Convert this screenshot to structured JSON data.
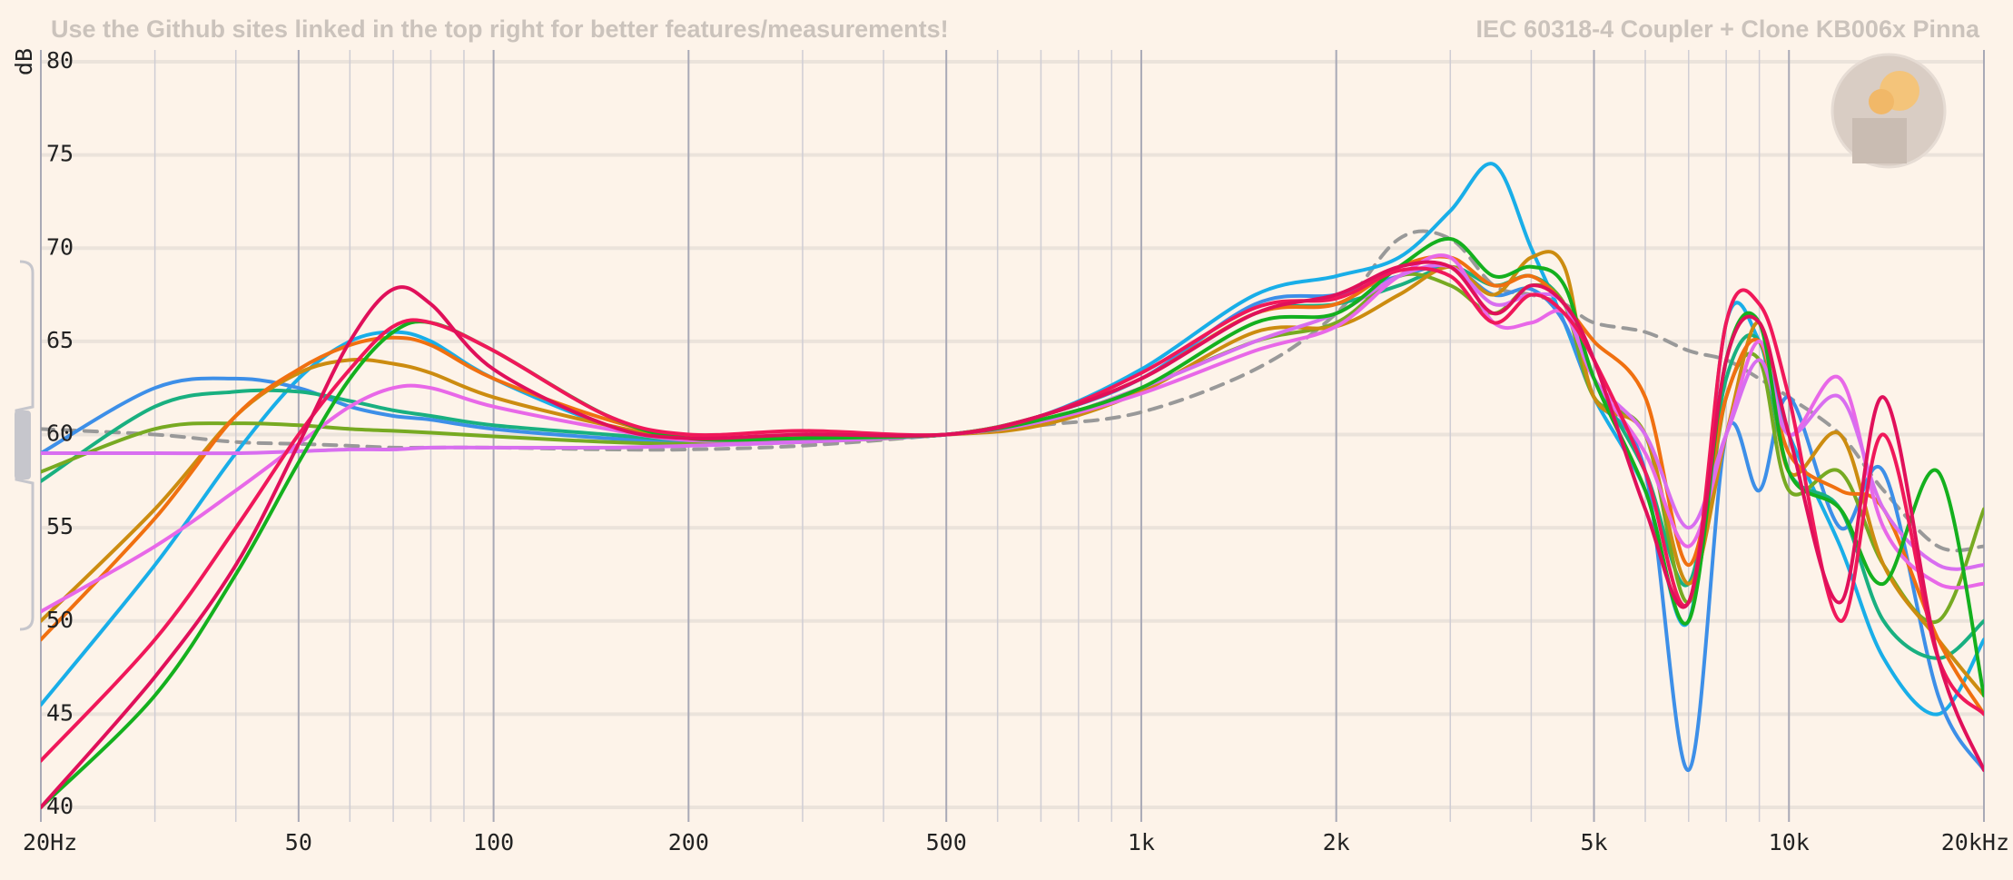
{
  "chart_data": {
    "type": "line",
    "title": "Use the Github sites linked in the top right for better features/measurements!",
    "subtitle": "IEC 60318-4 Coupler + Clone KB006x Pinna",
    "y_label": "dB",
    "log_x": true,
    "smooth": true,
    "xlim": [
      20,
      20000
    ],
    "ylim": [
      40,
      80
    ],
    "yticks": [
      40,
      45,
      50,
      55,
      60,
      65,
      70,
      75,
      80
    ],
    "xticks": [
      {
        "value": 20,
        "label": "20Hz"
      },
      50,
      100,
      200,
      500,
      {
        "value": 1000,
        "label": "1k"
      },
      {
        "value": 2000,
        "label": "2k"
      },
      {
        "value": 5000,
        "label": "5k"
      },
      {
        "value": 10000,
        "label": "10k"
      },
      {
        "value": 20000,
        "label": "20kHz"
      }
    ],
    "xgrid_minor": [
      30,
      40,
      60,
      70,
      80,
      90,
      300,
      400,
      600,
      700,
      800,
      900,
      3000,
      4000,
      6000,
      7000,
      8000,
      9000
    ],
    "grid": true,
    "x": [
      20,
      30,
      40,
      50,
      60,
      70,
      80,
      100,
      150,
      200,
      300,
      500,
      700,
      1000,
      1500,
      2000,
      2500,
      3000,
      3500,
      4000,
      4500,
      5000,
      6000,
      7000,
      8000,
      9000,
      10000,
      12000,
      14000,
      17000,
      20000
    ],
    "series": [
      {
        "color": "#999999",
        "dashed": true,
        "values": [
          60.3,
          60,
          59.6,
          59.5,
          59.4,
          59.3,
          59.3,
          59.3,
          59.2,
          59.2,
          59.4,
          60,
          60.5,
          61.2,
          63.5,
          66.5,
          70.5,
          70.5,
          68,
          67.5,
          67,
          66,
          65.5,
          64.5,
          64,
          63,
          62,
          60,
          57,
          54,
          54
        ]
      },
      {
        "color": "#19aee8",
        "values": [
          45.5,
          53,
          59,
          63,
          65,
          65.5,
          65,
          63,
          60.5,
          59.8,
          59.7,
          60,
          61,
          63.5,
          67.5,
          68.5,
          69.5,
          72,
          74.5,
          70,
          66,
          62,
          57,
          50,
          66,
          65,
          60,
          54,
          48,
          45,
          49
        ]
      },
      {
        "color": "#3d8fe8",
        "values": [
          59,
          62.5,
          63,
          62.5,
          61.5,
          61,
          60.8,
          60.3,
          59.8,
          59.6,
          59.7,
          60,
          61,
          63,
          67,
          67.5,
          68.5,
          69,
          67.5,
          67.8,
          66,
          62,
          58,
          42,
          60,
          57,
          62,
          55,
          58,
          46,
          42
        ]
      },
      {
        "color": "#19b080",
        "values": [
          57.5,
          61.5,
          62.3,
          62.3,
          61.8,
          61.3,
          61,
          60.5,
          60,
          59.7,
          59.7,
          60,
          61,
          63,
          66.5,
          67,
          68,
          69,
          68,
          68.5,
          67,
          63,
          58,
          52,
          63,
          65,
          58,
          56,
          50,
          48,
          50
        ]
      },
      {
        "color": "#77aa22",
        "values": [
          58,
          60.3,
          60.6,
          60.5,
          60.3,
          60.2,
          60.1,
          59.9,
          59.6,
          59.5,
          59.6,
          60,
          60.7,
          62.5,
          65,
          66,
          68.5,
          68,
          66.5,
          68,
          67,
          62,
          60,
          51,
          62,
          64,
          57,
          58,
          53,
          50,
          56
        ]
      },
      {
        "color": "#cc8c10",
        "values": [
          50,
          56,
          61,
          63.3,
          64,
          63.8,
          63.3,
          62,
          60.5,
          59.8,
          59.8,
          60,
          60.5,
          62.3,
          65.5,
          65.8,
          67.5,
          69,
          67.5,
          69.5,
          69,
          62,
          60,
          52,
          60,
          66,
          58,
          60,
          53,
          49,
          46
        ]
      },
      {
        "color": "#f07010",
        "values": [
          49,
          55.5,
          61,
          63.5,
          64.8,
          65.2,
          64.8,
          63,
          60.8,
          59.9,
          59.8,
          60,
          61,
          63,
          66.5,
          67,
          69,
          69.5,
          68,
          68.5,
          67,
          65,
          62,
          53,
          62,
          65,
          59,
          57,
          56,
          49,
          45
        ]
      },
      {
        "color": "#e868e8",
        "values": [
          50.5,
          54,
          57,
          59.5,
          61.5,
          62.5,
          62.5,
          61.5,
          60.3,
          59.7,
          59.7,
          60,
          60.7,
          62.2,
          64.5,
          65.8,
          68.5,
          69.5,
          66,
          66,
          66.5,
          63,
          59,
          54,
          60,
          65,
          60,
          63,
          55,
          52,
          52
        ]
      },
      {
        "color": "#d86ef0",
        "values": [
          59,
          59,
          59,
          59.1,
          59.2,
          59.2,
          59.3,
          59.3,
          59.3,
          59.4,
          59.6,
          60,
          60.7,
          62.5,
          65,
          66.5,
          68.5,
          69,
          67,
          67.5,
          67,
          63,
          60,
          55,
          60,
          64,
          60,
          62,
          56,
          53,
          53
        ]
      },
      {
        "color": "#14b01e",
        "values": [
          40,
          46,
          52.5,
          58.5,
          63,
          65.5,
          66,
          64.5,
          61,
          59.8,
          59.8,
          60,
          60.8,
          62.5,
          66,
          66.5,
          69,
          70.5,
          68.5,
          69,
          68,
          63,
          57,
          50,
          64,
          66,
          58,
          56,
          52,
          58,
          46
        ]
      },
      {
        "color": "#f0185a",
        "values": [
          42.5,
          49,
          55,
          60,
          63.5,
          65.8,
          66,
          64.5,
          61,
          60,
          60.2,
          60,
          61,
          63.3,
          66.8,
          67.3,
          68.8,
          68.5,
          66,
          67.5,
          66.5,
          64,
          58,
          51,
          66,
          67,
          62,
          50,
          60,
          48,
          45
        ]
      },
      {
        "color": "#e0105a",
        "values": [
          40,
          47,
          53,
          59.5,
          65,
          67.8,
          67,
          63.5,
          60.5,
          59.8,
          60,
          60,
          61,
          63,
          66.5,
          67.5,
          69,
          69,
          66.5,
          68,
          67,
          64,
          56,
          51,
          64,
          66,
          60,
          51,
          62,
          48,
          42
        ]
      }
    ]
  }
}
